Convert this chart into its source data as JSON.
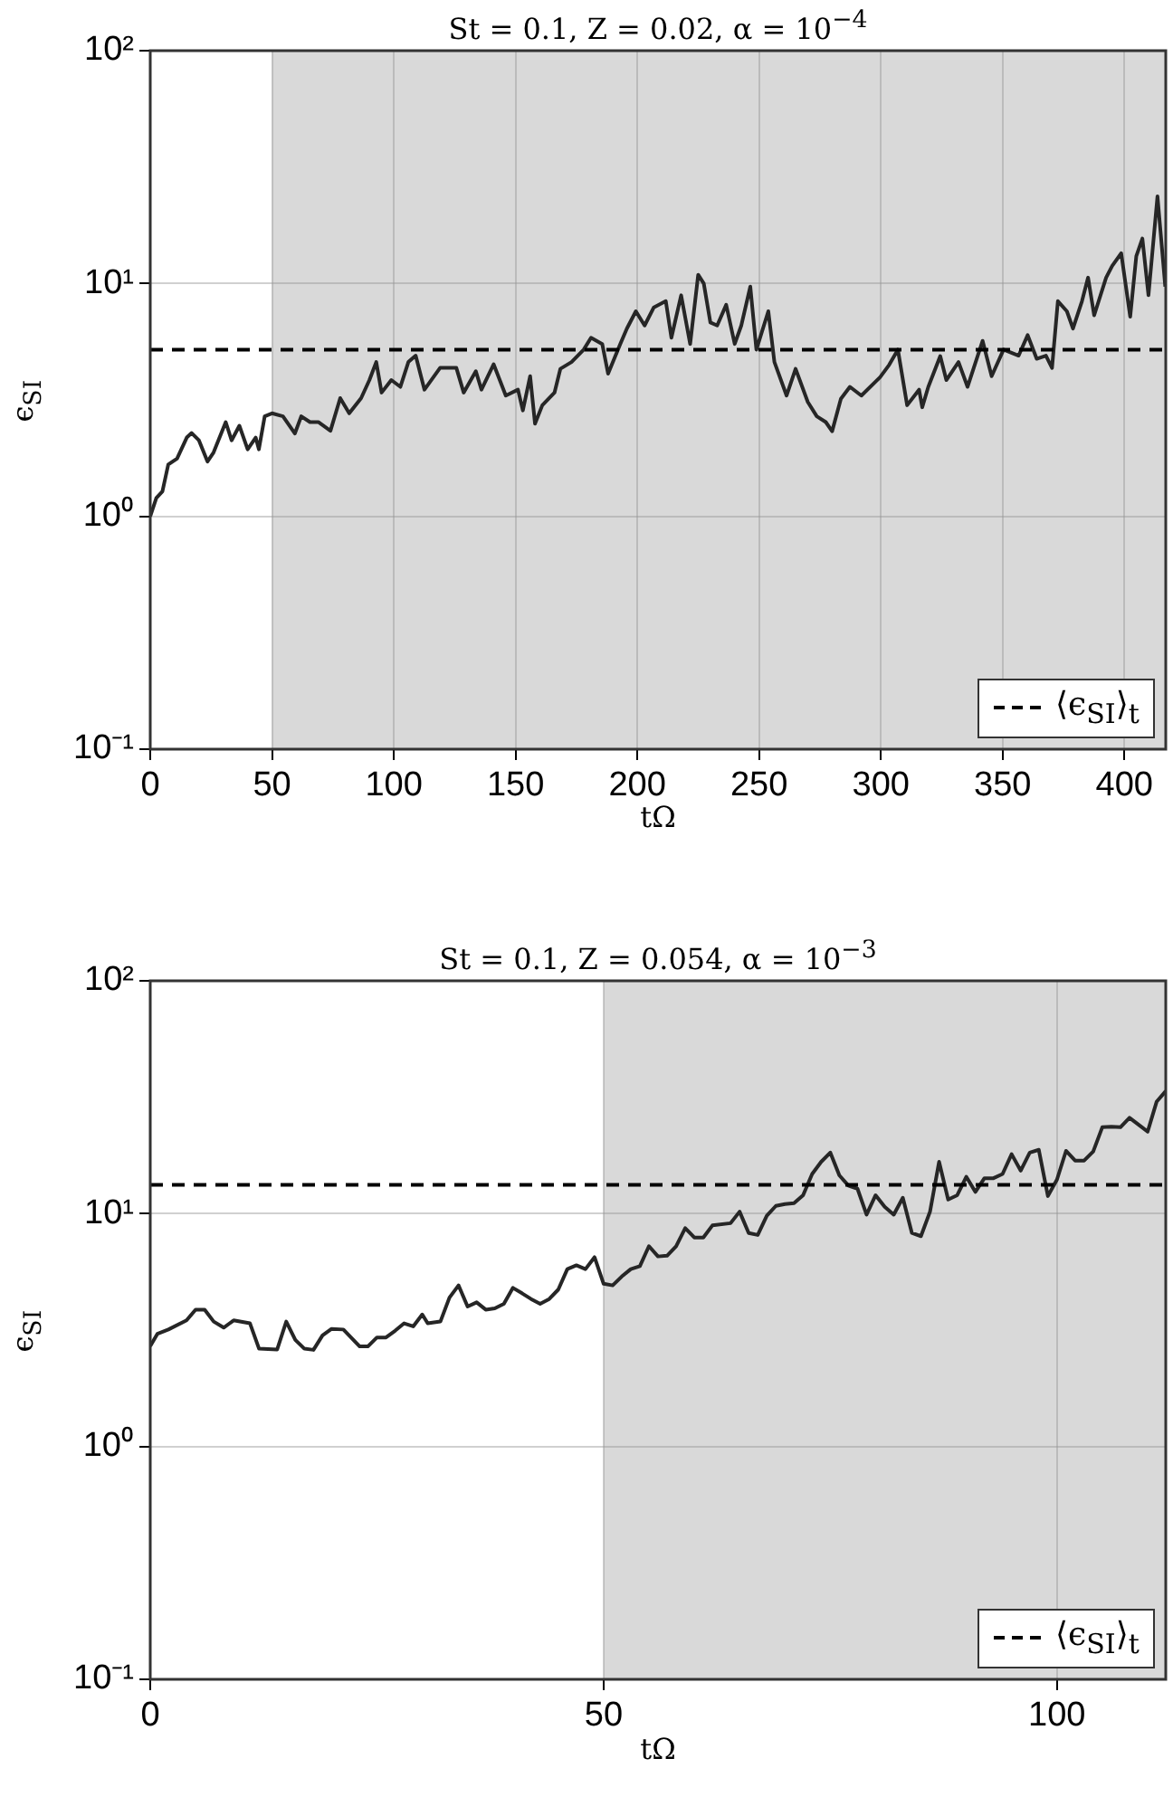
{
  "chart_data": [
    {
      "type": "line",
      "title": "St = 0.1,  Z = 0.02, α = 10$^{−4}$",
      "xlabel": "tΩ",
      "ylabel": "ϵ$_{SI}$",
      "x": [
        0,
        2.5,
        5,
        7.4,
        11,
        15,
        17,
        20,
        23.5,
        26,
        31,
        33.4,
        36.6,
        40,
        43.3,
        44.6,
        47,
        50,
        54.5,
        59.4,
        62,
        65.6,
        69,
        74,
        78,
        81.7,
        86.6,
        90,
        92.8,
        95,
        99,
        102.7,
        106,
        109,
        112.6,
        119,
        125.7,
        128.7,
        133.7,
        136,
        141,
        146,
        151,
        153,
        156,
        158,
        161,
        166,
        168.4,
        173,
        178,
        181,
        185.6,
        188,
        193,
        195.7,
        199.4,
        203,
        206.8,
        211.7,
        214,
        218,
        221.7,
        225,
        227.3,
        230,
        232.8,
        236.5,
        240,
        242.7,
        246.4,
        248.9,
        253.8,
        256.3,
        261.3,
        265,
        270,
        273.7,
        277.4,
        280,
        283.6,
        287.3,
        292,
        299.7,
        303.4,
        307,
        310.8,
        315.7,
        317,
        319.5,
        324.4,
        326.9,
        331.9,
        335.6,
        341.8,
        345.5,
        350.4,
        356.6,
        360.3,
        364,
        367.8,
        370.3,
        372.7,
        376.4,
        378.9,
        382.6,
        385.1,
        387.6,
        392.5,
        395,
        398.7,
        402.4,
        404.9,
        407.4,
        409.9,
        413.6,
        416.8
      ],
      "series": [
        {
          "color": "#262626",
          "values": [
            1.0,
            1.2,
            1.28,
            1.67,
            1.77,
            2.18,
            2.28,
            2.12,
            1.72,
            1.88,
            2.54,
            2.12,
            2.45,
            1.94,
            2.18,
            1.94,
            2.69,
            2.77,
            2.69,
            2.27,
            2.69,
            2.54,
            2.54,
            2.33,
            3.22,
            2.77,
            3.22,
            3.85,
            4.6,
            3.4,
            3.85,
            3.6,
            4.6,
            4.9,
            3.5,
            4.34,
            4.34,
            3.4,
            4.2,
            3.5,
            4.5,
            3.3,
            3.5,
            2.85,
            4.0,
            2.5,
            3.0,
            3.4,
            4.3,
            4.6,
            5.2,
            5.85,
            5.5,
            4.1,
            5.5,
            6.4,
            7.6,
            6.6,
            7.9,
            8.4,
            5.85,
            8.9,
            5.5,
            10.9,
            10,
            6.8,
            6.6,
            8.1,
            5.5,
            6.6,
            9.7,
            5.2,
            7.6,
            4.6,
            3.3,
            4.3,
            3.1,
            2.69,
            2.54,
            2.32,
            3.2,
            3.6,
            3.3,
            3.96,
            4.47,
            5.2,
            3.0,
            3.5,
            2.94,
            3.6,
            4.88,
            3.85,
            4.6,
            3.6,
            5.67,
            4.0,
            5.2,
            4.9,
            6.0,
            4.75,
            4.9,
            4.34,
            8.4,
            7.6,
            6.4,
            8.4,
            10.6,
            7.3,
            10.6,
            11.9,
            13.5,
            7.2,
            13.1,
            15.6,
            8.9,
            23.7,
            9.7
          ]
        }
      ],
      "xlim": [
        0,
        417
      ],
      "xticks": [
        0,
        50,
        100,
        150,
        200,
        250,
        300,
        350,
        400
      ],
      "ylim": [
        0.1,
        100
      ],
      "yticks": [
        {
          "value": 0.1,
          "label": "10⁻¹"
        },
        {
          "value": 1,
          "label": "10⁰"
        },
        {
          "value": 10,
          "label": "10¹"
        },
        {
          "value": 100,
          "label": "10²"
        }
      ],
      "log": "y",
      "grid": true,
      "legend": "bottom right",
      "marker": "none",
      "ref_lines": [
        {
          "axis": "y",
          "value": 5.2,
          "label": "⟨ϵ$_{SI}$⟩$_{t}$",
          "color": "#000000",
          "line_style": "dashed"
        }
      ],
      "bands": [
        {
          "axis": "x",
          "from": 50,
          "to": 417,
          "color": "#d9d9d9"
        }
      ]
    },
    {
      "type": "line",
      "title": "St = 0.1,  Z = 0.054, α = 10$^{−3}$",
      "xlabel": "tΩ",
      "ylabel": "ϵ$_{SI}$",
      "x": [
        0,
        0.8,
        2,
        4,
        5,
        6,
        7,
        8.1,
        9.2,
        11,
        12,
        14,
        15,
        16,
        17,
        18,
        19,
        20,
        21.3,
        23.1,
        24,
        25,
        26,
        27,
        28,
        29,
        30,
        30.6,
        32,
        33,
        34,
        35,
        36,
        37,
        38,
        39,
        40,
        41,
        42,
        43,
        44,
        45,
        46,
        47,
        48,
        49,
        50,
        51,
        52,
        53,
        54,
        55,
        56,
        57,
        58,
        59,
        60,
        61,
        62,
        64,
        65,
        66,
        67,
        68,
        69,
        70,
        71,
        72,
        73,
        74,
        75,
        76,
        77,
        78,
        79,
        80,
        81,
        82,
        83,
        84,
        85,
        86,
        87,
        88,
        89,
        90,
        91,
        92,
        93,
        94,
        95,
        96,
        97,
        98,
        99,
        100,
        101,
        102,
        103,
        104,
        105,
        106,
        107,
        108,
        110,
        111,
        112
      ],
      "series": [
        {
          "color": "#262626",
          "values": [
            2.7,
            3.05,
            3.18,
            3.48,
            3.87,
            3.87,
            3.44,
            3.24,
            3.48,
            3.38,
            2.63,
            2.61,
            3.44,
            2.87,
            2.63,
            2.6,
            3.0,
            3.2,
            3.18,
            2.69,
            2.69,
            2.94,
            2.94,
            3.14,
            3.38,
            3.28,
            3.69,
            3.38,
            3.44,
            4.36,
            4.92,
            3.99,
            4.16,
            3.87,
            3.92,
            4.1,
            4.8,
            4.55,
            4.3,
            4.1,
            4.3,
            4.72,
            5.78,
            6.0,
            5.78,
            6.5,
            5.0,
            4.92,
            5.37,
            5.78,
            5.95,
            7.25,
            6.55,
            6.6,
            7.25,
            8.67,
            7.9,
            7.9,
            8.9,
            9.1,
            10.2,
            8.26,
            8.1,
            9.8,
            10.8,
            11.0,
            11.1,
            12.0,
            14.8,
            16.7,
            18.3,
            14.6,
            13.2,
            12.8,
            9.9,
            12.0,
            10.7,
            9.9,
            11.7,
            8.26,
            8.0,
            10.2,
            16.7,
            11.5,
            12.0,
            14.4,
            12.4,
            14.2,
            14.2,
            14.8,
            18.0,
            15.3,
            18.3,
            18.8,
            11.9,
            14.0,
            18.6,
            16.9,
            16.9,
            18.5,
            23.5,
            23.6,
            23.5,
            25.8,
            22.5,
            30.3,
            33.6
          ]
        }
      ],
      "xlim": [
        0,
        112
      ],
      "xticks": [
        0,
        50,
        100
      ],
      "ylim": [
        0.1,
        100
      ],
      "yticks": [
        {
          "value": 0.1,
          "label": "10⁻¹"
        },
        {
          "value": 1,
          "label": "10⁰"
        },
        {
          "value": 10,
          "label": "10¹"
        },
        {
          "value": 100,
          "label": "10²"
        }
      ],
      "log": "y",
      "grid": true,
      "legend": "bottom right",
      "marker": "none",
      "ref_lines": [
        {
          "axis": "y",
          "value": 13.3,
          "label": "⟨ϵ$_{SI}$⟩$_{t}$",
          "color": "#000000",
          "line_style": "dashed"
        }
      ],
      "bands": [
        {
          "axis": "x",
          "from": 50,
          "to": 112,
          "color": "#d9d9d9"
        }
      ]
    }
  ]
}
